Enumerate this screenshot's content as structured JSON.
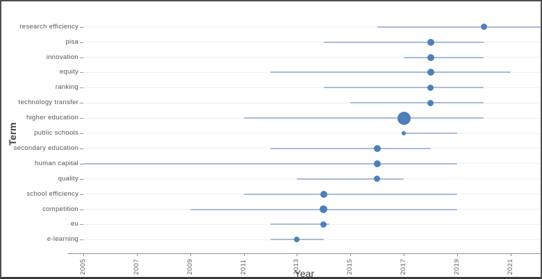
{
  "chart_data": {
    "type": "scatter",
    "subtype": "dot-range-timeline",
    "title": "",
    "xlabel": "Year",
    "ylabel": "Term",
    "xlim": [
      2004.4,
      2022.15
    ],
    "x_ticks": [
      "2005",
      "2007",
      "2009",
      "2011",
      "2013",
      "2015",
      "2017",
      "2019",
      "2021"
    ],
    "grid": "faint horizontal gridline per term row, no vertical gridlines",
    "legend": "none",
    "series": [
      {
        "term": "research efficiency",
        "range_start": 2016,
        "range_end": 2022.15,
        "dot_year": 2020,
        "dot_size_px": 9,
        "clipped_at_right": true
      },
      {
        "term": "pisa",
        "range_start": 2014,
        "range_end": 2020,
        "dot_year": 2018,
        "dot_size_px": 10
      },
      {
        "term": "innovation",
        "range_start": 2017,
        "range_end": 2020,
        "dot_year": 2018,
        "dot_size_px": 10
      },
      {
        "term": "equity",
        "range_start": 2012,
        "range_end": 2021,
        "dot_year": 2018,
        "dot_size_px": 10
      },
      {
        "term": "ranking",
        "range_start": 2014,
        "range_end": 2020,
        "dot_year": 2018,
        "dot_size_px": 9
      },
      {
        "term": "technology transfer",
        "range_start": 2015,
        "range_end": 2020,
        "dot_year": 2018,
        "dot_size_px": 9
      },
      {
        "term": "higher education",
        "range_start": 2011,
        "range_end": 2020,
        "dot_year": 2017,
        "dot_size_px": 19
      },
      {
        "term": "public schools",
        "range_start": 2017,
        "range_end": 2019,
        "dot_year": 2017,
        "dot_size_px": 6
      },
      {
        "term": "secondary education",
        "range_start": 2012,
        "range_end": 2018,
        "dot_year": 2016,
        "dot_size_px": 10
      },
      {
        "term": "human capital",
        "range_start": 2005,
        "range_end": 2019,
        "dot_year": 2016,
        "dot_size_px": 10
      },
      {
        "term": "quality",
        "range_start": 2013,
        "range_end": 2017,
        "dot_year": 2016,
        "dot_size_px": 9
      },
      {
        "term": "school efficiency",
        "range_start": 2011,
        "range_end": 2019,
        "dot_year": 2014,
        "dot_size_px": 10
      },
      {
        "term": "competition",
        "range_start": 2009,
        "range_end": 2019,
        "dot_year": 2014,
        "dot_size_px": 11
      },
      {
        "term": "eu",
        "range_start": 2012,
        "range_end": 2014.2,
        "dot_year": 2014,
        "dot_size_px": 9
      },
      {
        "term": "e-learning",
        "range_start": 2012,
        "range_end": 2014,
        "dot_year": 2013,
        "dot_size_px": 8
      }
    ],
    "colors": {
      "range_line": "#a7bbd7",
      "dot": "#4d80b8",
      "gridline": "#f0eef0",
      "axis_line": "#8f8f8f",
      "tick_label": "#616161",
      "term_label": "#565656",
      "axis_title": "#3f3f3f",
      "frame_border": "#4e4e4e",
      "background": "#ffffff"
    }
  }
}
